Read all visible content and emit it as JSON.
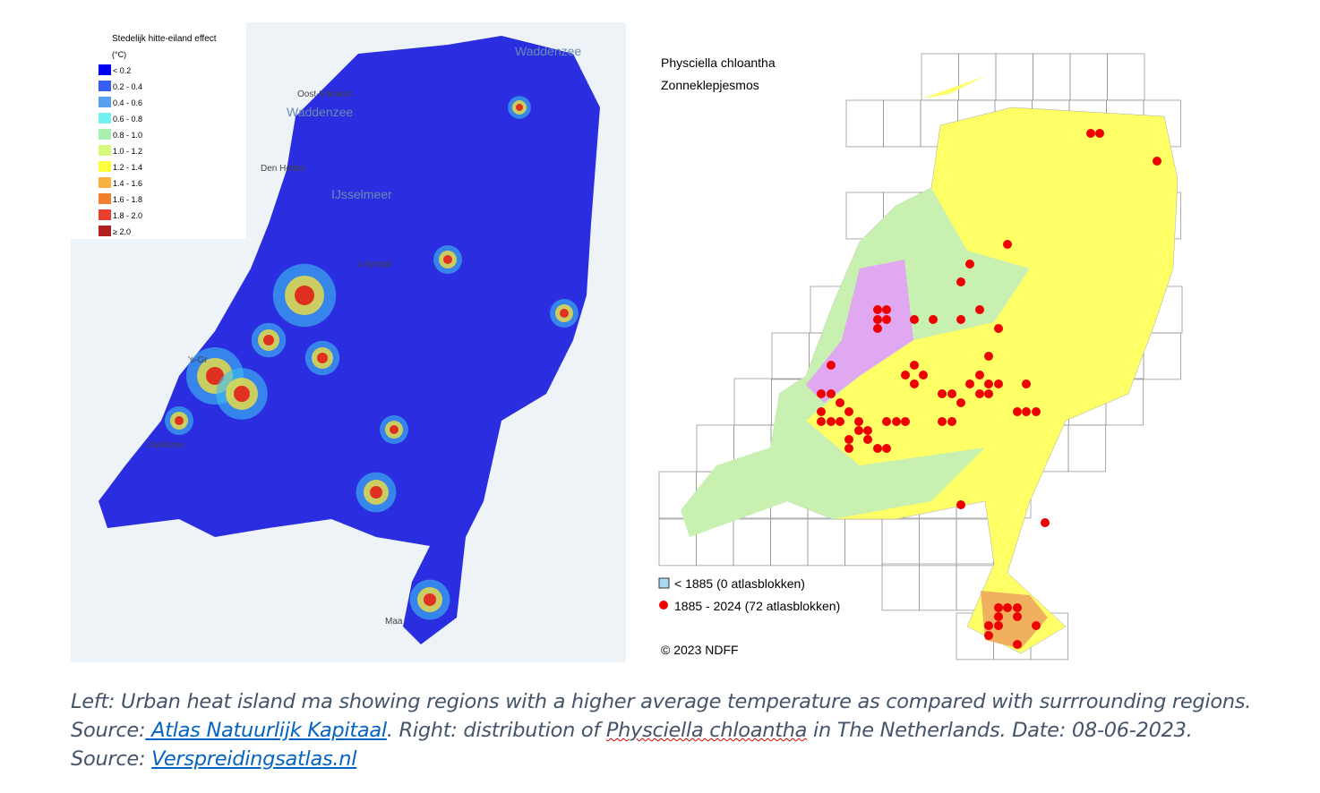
{
  "left_map": {
    "legend": {
      "title": "Stedelijk hitte-eiland effect",
      "unit": "(°C)",
      "items": [
        "< 0.2",
        "0.2 - 0.4",
        "0.4 - 0.6",
        "0.6 - 0.8",
        "0.8 - 1.0",
        "1.0 - 1.2",
        "1.2 - 1.4",
        "1.4 - 1.6",
        "1.6 - 1.8",
        "1.8 - 2.0",
        "≥ 2.0"
      ]
    },
    "places": [
      "Waddenzee",
      "Oost-Vlieland",
      "Waddenzee",
      "Den Helder",
      "IJsselmeer",
      "Lelystad",
      "'s-Gr",
      "Zierikzee",
      "Maa"
    ]
  },
  "right_map": {
    "title": "Physciella chloantha",
    "subtitle": "Zonneklepjesmos",
    "legend": [
      "< 1885   (0 atlasblokken)",
      "1885 - 2024 (72 atlasblokken)"
    ],
    "copyright": "© 2023 NDFF"
  },
  "caption": {
    "text1": "Left: Urban heat island ma showing regions with a higher average temperature as compared with surrrounding regions. Source:",
    "link1": " Atlas Natuurlijk Kapitaal",
    "text2": ".  Right: distribution of ",
    "species": "Physciella chloantha",
    "text3": " in The Netherlands. Date: 08-06-2023. Source: ",
    "link2": "Verspreidingsatlas.nl"
  }
}
